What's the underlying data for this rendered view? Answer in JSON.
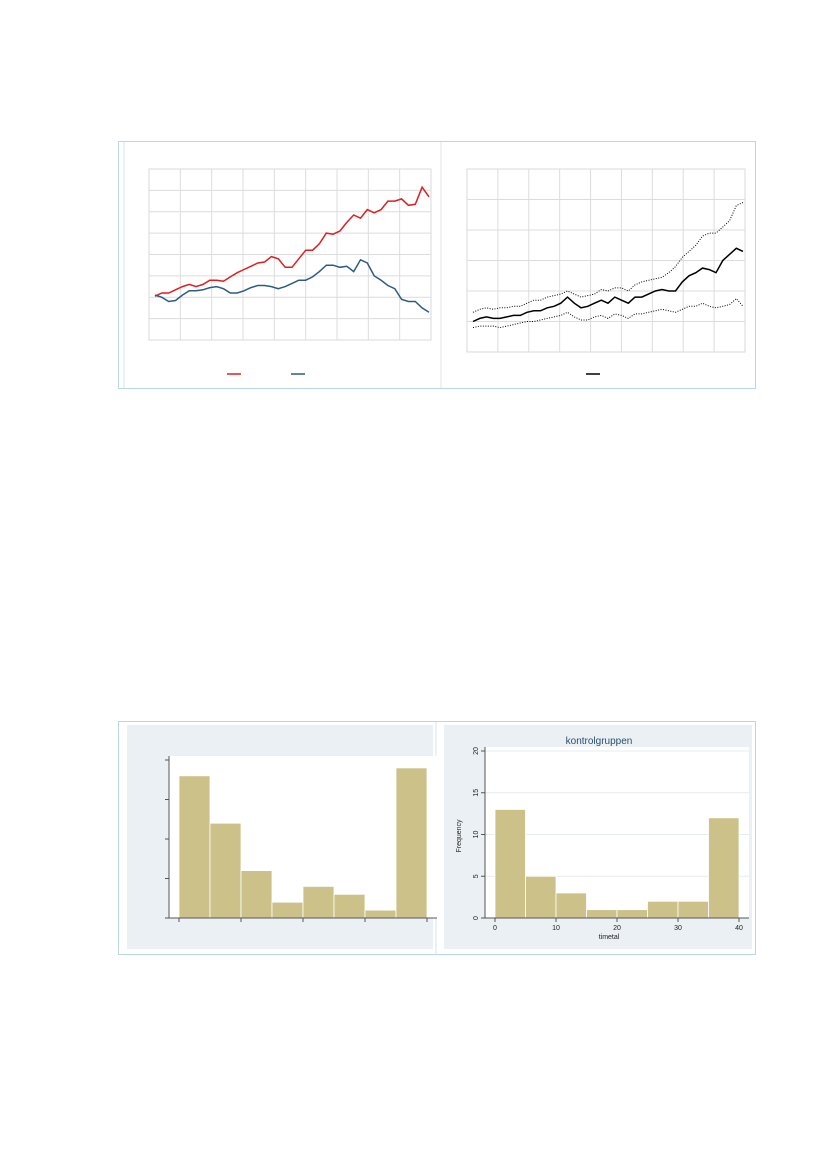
{
  "chart_data": [
    {
      "type": "line",
      "panel": "top-left",
      "title": "",
      "xlabel": "",
      "ylabel": "",
      "grid": true,
      "legend": "bottom",
      "ylim": [
        0,
        8
      ],
      "xlim": [
        0,
        40
      ],
      "series": [
        {
          "color": "#dd1f1f",
          "values": [
            2.05,
            2.2,
            2.2,
            2.35,
            2.5,
            2.6,
            2.5,
            2.6,
            2.8,
            2.8,
            2.75,
            2.95,
            3.15,
            3.3,
            3.45,
            3.6,
            3.65,
            3.9,
            3.8,
            3.4,
            3.4,
            3.8,
            4.2,
            4.2,
            4.5,
            5.0,
            4.95,
            5.1,
            5.5,
            5.85,
            5.7,
            6.1,
            5.95,
            6.1,
            6.5,
            6.5,
            6.6,
            6.3,
            6.35,
            7.15,
            6.7
          ]
        },
        {
          "color": "#2c5b86",
          "values": [
            2.1,
            2.0,
            1.8,
            1.85,
            2.1,
            2.3,
            2.3,
            2.35,
            2.45,
            2.5,
            2.4,
            2.2,
            2.2,
            2.3,
            2.45,
            2.55,
            2.55,
            2.5,
            2.4,
            2.5,
            2.65,
            2.8,
            2.8,
            2.95,
            3.2,
            3.5,
            3.5,
            3.4,
            3.45,
            3.2,
            3.75,
            3.6,
            3.0,
            2.8,
            2.55,
            2.4,
            1.9,
            1.8,
            1.8,
            1.5,
            1.3
          ]
        }
      ],
      "legend_colors": [
        "#dd1f1f",
        "#2c5b86"
      ]
    },
    {
      "type": "line",
      "panel": "top-right",
      "title": "",
      "xlabel": "",
      "ylabel": "",
      "grid": true,
      "legend": "bottom",
      "ylim": [
        0,
        6
      ],
      "xlim": [
        0,
        40
      ],
      "series": [
        {
          "color": "#000000",
          "style": "solid",
          "values": [
            1.0,
            1.1,
            1.15,
            1.1,
            1.1,
            1.15,
            1.2,
            1.2,
            1.3,
            1.35,
            1.35,
            1.45,
            1.5,
            1.6,
            1.8,
            1.6,
            1.45,
            1.5,
            1.6,
            1.7,
            1.6,
            1.8,
            1.7,
            1.6,
            1.8,
            1.8,
            1.9,
            2.0,
            2.05,
            2.0,
            2.0,
            2.3,
            2.5,
            2.6,
            2.75,
            2.7,
            2.6,
            3.0,
            3.2,
            3.4,
            3.3
          ]
        },
        {
          "color": "#000000",
          "style": "dotted",
          "values": [
            1.3,
            1.4,
            1.45,
            1.4,
            1.45,
            1.45,
            1.5,
            1.5,
            1.6,
            1.7,
            1.7,
            1.8,
            1.85,
            1.9,
            2.0,
            1.9,
            1.8,
            1.85,
            1.9,
            2.05,
            2.0,
            2.1,
            2.1,
            2.0,
            2.2,
            2.3,
            2.35,
            2.4,
            2.45,
            2.6,
            2.8,
            3.1,
            3.3,
            3.5,
            3.8,
            3.9,
            3.9,
            4.1,
            4.3,
            4.8,
            4.9
          ]
        },
        {
          "color": "#000000",
          "style": "dotted",
          "values": [
            0.8,
            0.85,
            0.85,
            0.85,
            0.8,
            0.85,
            0.9,
            0.95,
            1.0,
            1.0,
            1.05,
            1.1,
            1.15,
            1.2,
            1.3,
            1.15,
            1.05,
            1.05,
            1.15,
            1.2,
            1.1,
            1.25,
            1.2,
            1.1,
            1.25,
            1.25,
            1.3,
            1.35,
            1.4,
            1.35,
            1.3,
            1.4,
            1.5,
            1.5,
            1.6,
            1.5,
            1.45,
            1.5,
            1.55,
            1.75,
            1.5
          ]
        }
      ],
      "legend_colors": [
        "#000000"
      ]
    },
    {
      "type": "bar",
      "panel": "bottom-left",
      "title": "",
      "xlabel": "",
      "ylabel": "",
      "grid": false,
      "bar_color": "#ccc289",
      "ylim": [
        0,
        20
      ],
      "bins": [
        [
          0,
          5
        ],
        [
          5,
          10
        ],
        [
          10,
          15
        ],
        [
          15,
          20
        ],
        [
          20,
          25
        ],
        [
          25,
          30
        ],
        [
          30,
          35
        ],
        [
          35,
          40
        ]
      ],
      "values": [
        18,
        12,
        6,
        2,
        4,
        3,
        1,
        19
      ]
    },
    {
      "type": "bar",
      "panel": "bottom-right",
      "title": "kontrolgruppen",
      "xlabel": "timetal",
      "ylabel": "Frequency",
      "grid": true,
      "bar_color": "#ccc289",
      "ylim": [
        0,
        20
      ],
      "yticks": [
        "0",
        "5",
        "10",
        "15",
        "20"
      ],
      "xticks": [
        "0",
        "10",
        "20",
        "30",
        "40"
      ],
      "bins": [
        [
          0,
          5
        ],
        [
          5,
          10
        ],
        [
          10,
          15
        ],
        [
          15,
          20
        ],
        [
          20,
          25
        ],
        [
          25,
          30
        ],
        [
          30,
          35
        ],
        [
          35,
          40
        ]
      ],
      "values": [
        13,
        5,
        3,
        1,
        1,
        2,
        2,
        12
      ]
    }
  ]
}
